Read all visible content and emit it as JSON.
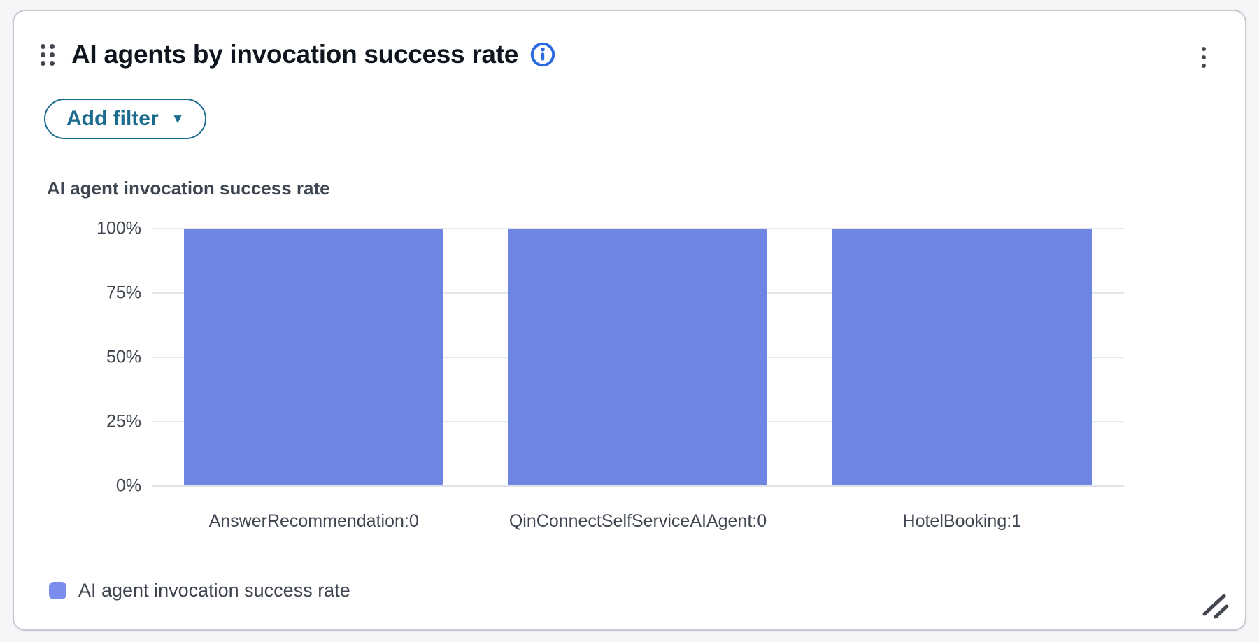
{
  "header": {
    "title": "AI agents by invocation success rate",
    "icons": {
      "drag_handle": "drag-dots-icon",
      "info": "info-circle-icon",
      "menu": "kebab-menu-icon",
      "resize": "resize-diagonal-icon"
    }
  },
  "toolbar": {
    "add_filter": {
      "label": "Add filter",
      "caret": "▼"
    }
  },
  "chart_section": {
    "title": "AI agent invocation success rate"
  },
  "legend": {
    "label": "AI agent invocation success rate",
    "swatch_color": "#7a8cee"
  },
  "colors": {
    "bar": "#6e86e2",
    "accent_teal": "#1b6b8e",
    "info_blue": "#2b6be0",
    "grid": "#e5e6ec",
    "baseline": "#e0e2e8",
    "text_dark": "#0e151e",
    "text_chart": "#3f4651"
  },
  "chart_data": {
    "type": "bar",
    "title": "AI agent invocation success rate",
    "series_name": "AI agent invocation success rate",
    "categories": [
      "AnswerRecommendation:0",
      "QinConnectSelfServiceAIAgent:0",
      "HotelBooking:1"
    ],
    "values": [
      100,
      100,
      100
    ],
    "value_unit": "%",
    "xlabel": "",
    "ylabel": "",
    "ylim": [
      0,
      100
    ],
    "yticks": [
      100,
      75,
      50,
      25,
      0
    ],
    "ytick_labels": [
      "100%",
      "75%",
      "50%",
      "25%",
      "0%"
    ],
    "grid": true,
    "legend_position": "bottom-left",
    "bar_color": "#6e86e2"
  }
}
